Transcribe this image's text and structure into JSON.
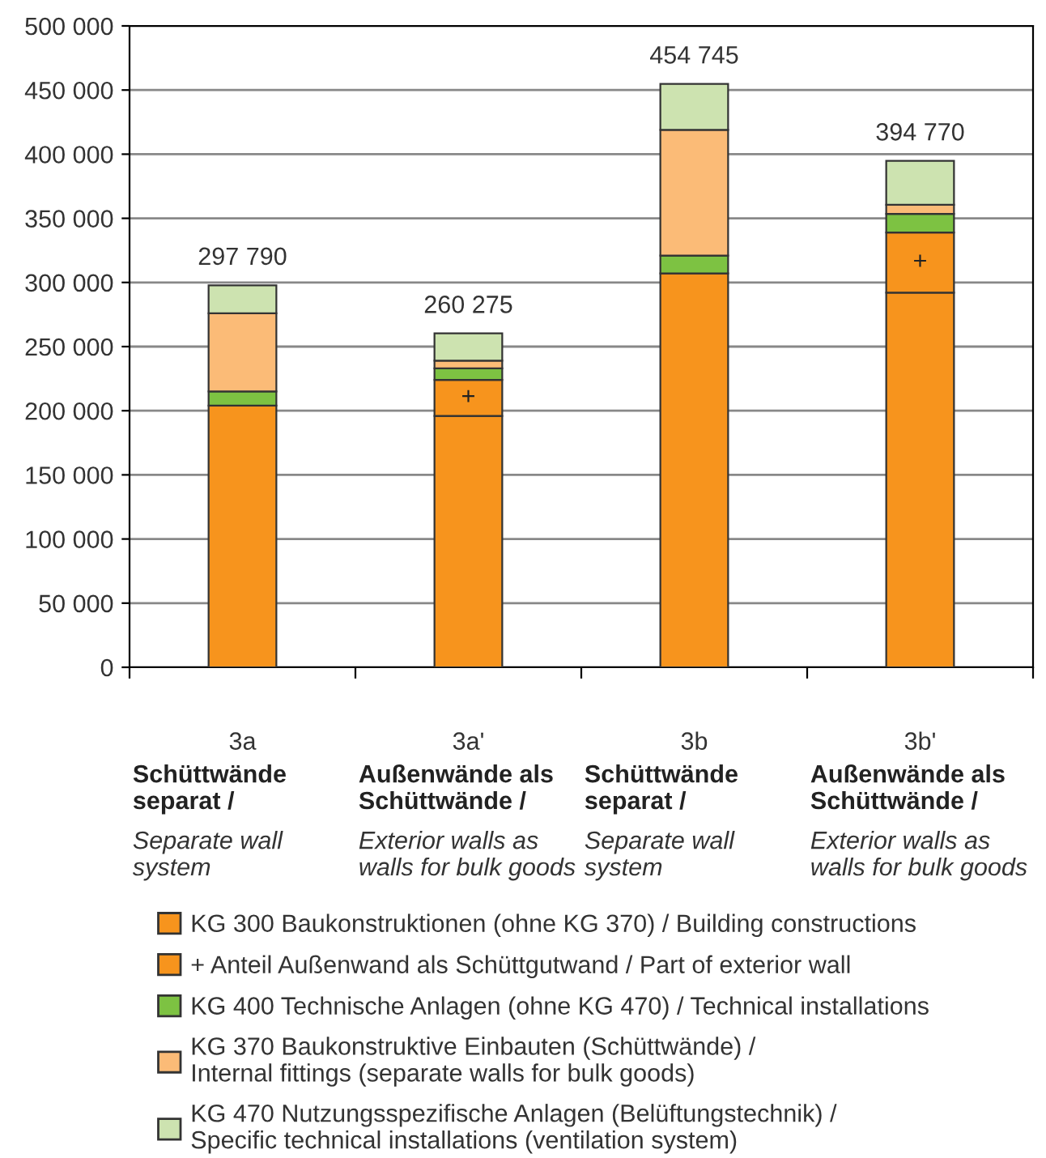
{
  "chart_data": {
    "type": "bar",
    "stacked": true,
    "categories": [
      "3a\nSchüttwände\nseparat /\nSeparate wall\nsystem",
      "3a'\nAußenwände als\nSchüttwände /\nExterior walls as\nwalls for bulk goods",
      "3b\nSchüttwände\nseparat /\nSeparate wall\nsystem",
      "3b'\nAußenwände als\nSchüttwände /\nExterior walls as\nwalls for bulk goods"
    ],
    "series": [
      {
        "name": "KG 300 Baukonstruktionen (ohne KG 370) / Building constructions",
        "color": "#f7941d",
        "values": [
          204000,
          196000,
          307000,
          292000
        ]
      },
      {
        "name": "+ Anteil Außenwand als Schüttgutwand / Part of exterior wall",
        "color": "#f7941d",
        "values": [
          null,
          28000,
          null,
          47000
        ],
        "value_labels": [
          null,
          "+",
          null,
          "+"
        ]
      },
      {
        "name": "KG 400 Technische Anlagen (ohne KG 470) / Technical installations",
        "color": "#7dc242",
        "values": [
          11000,
          9000,
          14000,
          14500
        ]
      },
      {
        "name": "KG 370 Baukonstruktive Einbauten (Schüttwände) /\nInternal fittings (separate walls for bulk goods)",
        "color": "#fbbb77",
        "values": [
          61000,
          6000,
          98000,
          7000
        ]
      },
      {
        "name": "KG 470 Nutzungsspezifische Anlagen (Belüftungstechnik) /\nSpecific technical installations (ventilation system)",
        "color": "#cde3b0",
        "values": [
          21790,
          21275,
          35745,
          34270
        ]
      }
    ],
    "totals": [
      "297 790",
      "260 275",
      "454 745",
      "394 770"
    ],
    "ylim": [
      0,
      500000
    ],
    "yticks": [
      {
        "value": 0,
        "label": "0"
      },
      {
        "value": 50000,
        "label": "50 000"
      },
      {
        "value": 100000,
        "label": "100 000"
      },
      {
        "value": 150000,
        "label": "150 000"
      },
      {
        "value": 200000,
        "label": "200 000"
      },
      {
        "value": 250000,
        "label": "250 000"
      },
      {
        "value": 300000,
        "label": "300 000"
      },
      {
        "value": 350000,
        "label": "350 000"
      },
      {
        "value": 400000,
        "label": "400 000"
      },
      {
        "value": 450000,
        "label": "450 000"
      },
      {
        "value": 500000,
        "label": "500 000"
      }
    ],
    "grid": "y",
    "legend": "bottom"
  }
}
